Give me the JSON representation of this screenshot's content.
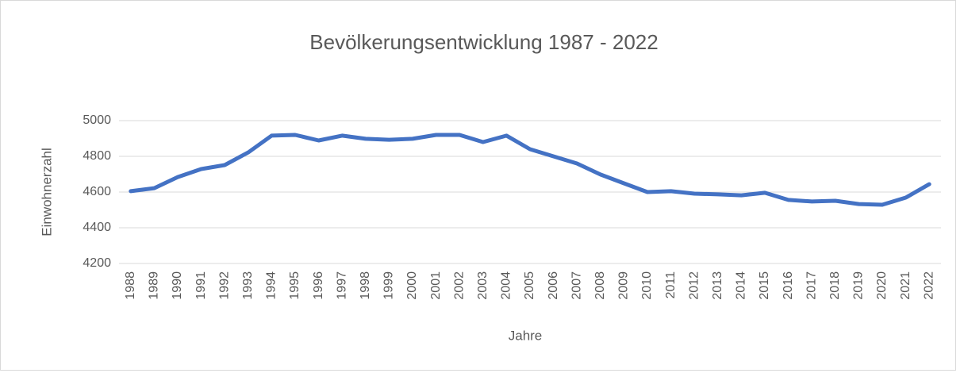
{
  "chart_data": {
    "type": "line",
    "title": "Bevölkerungsentwicklung 1987 - 2022",
    "x_label": "Jahre",
    "y_label": "Einwohnerzahl",
    "categories": [
      "1988",
      "1989",
      "1990",
      "1991",
      "1992",
      "1993",
      "1994",
      "1995",
      "1996",
      "1997",
      "1998",
      "1999",
      "2000",
      "2001",
      "2002",
      "2003",
      "2004",
      "2005",
      "2006",
      "2007",
      "2008",
      "2009",
      "2010",
      "2011",
      "2012",
      "2013",
      "2014",
      "2015",
      "2016",
      "2017",
      "2018",
      "2019",
      "2020",
      "2021",
      "2022"
    ],
    "series": [
      {
        "name": "Einwohnerzahl",
        "color": "#4472c4",
        "values": [
          4605,
          4622,
          4684,
          4729,
          4751,
          4822,
          4916,
          4920,
          4889,
          4916,
          4898,
          4893,
          4898,
          4920,
          4920,
          4880,
          4916,
          4840,
          4800,
          4760,
          4698,
          4649,
          4600,
          4605,
          4591,
          4587,
          4582,
          4596,
          4556,
          4547,
          4551,
          4533,
          4529,
          4569,
          4644
        ]
      }
    ],
    "ylim": [
      4200,
      5000
    ],
    "yticks": [
      4200,
      4400,
      4600,
      4800,
      5000
    ],
    "grid": true
  }
}
